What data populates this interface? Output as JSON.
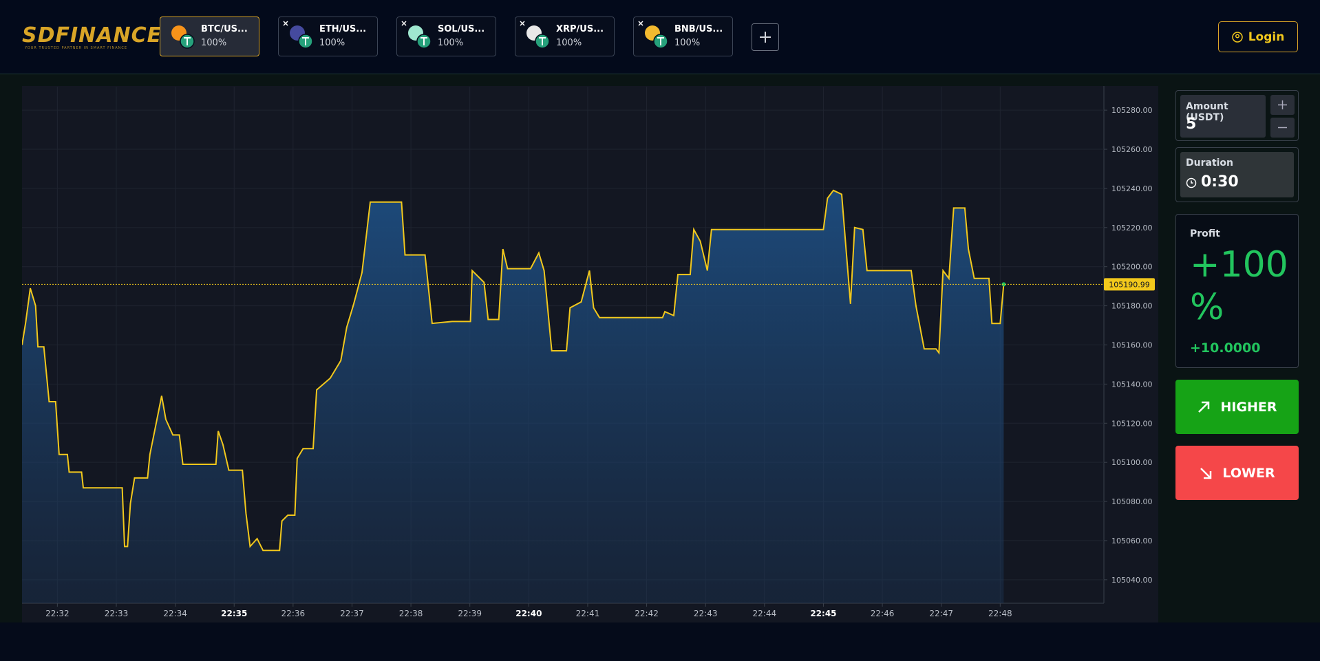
{
  "header": {
    "logo": "SDFINANCE",
    "tagline": "YOUR TRUSTED PARTNER IN SMART FINANCE",
    "active_tab": 0,
    "tabs": [
      {
        "pair": "BTC/US...",
        "payout": "100%",
        "color": "#f7931a"
      },
      {
        "pair": "ETH/US...",
        "payout": "100%",
        "color": "#454a9e"
      },
      {
        "pair": "SOL/US...",
        "payout": "100%",
        "color": "#9fe8d0"
      },
      {
        "pair": "XRP/US...",
        "payout": "100%",
        "color": "#e8e8e8"
      },
      {
        "pair": "BNB/US...",
        "payout": "100%",
        "color": "#f3ba2f"
      }
    ],
    "login": "Login"
  },
  "chart_data": {
    "type": "line",
    "grid": true,
    "x": [
      1351.4,
      1351.46,
      1351.54,
      1351.63,
      1351.67,
      1351.77,
      1351.86,
      1351.97,
      1352.03,
      1352.17,
      1352.2,
      1352.41,
      1352.44,
      1353.1,
      1353.14,
      1353.19,
      1353.24,
      1353.31,
      1353.53,
      1353.57,
      1353.67,
      1353.77,
      1353.84,
      1353.96,
      1354.07,
      1354.13,
      1354.69,
      1354.73,
      1354.81,
      1354.91,
      1355.14,
      1355.2,
      1355.27,
      1355.39,
      1355.49,
      1355.77,
      1355.81,
      1355.91,
      1356.03,
      1356.07,
      1356.17,
      1356.34,
      1356.4,
      1356.63,
      1356.81,
      1356.91,
      1357.03,
      1357.17,
      1357.31,
      1357.84,
      1357.9,
      1358.24,
      1358.36,
      1358.7,
      1359.01,
      1359.04,
      1359.24,
      1359.31,
      1359.49,
      1359.56,
      1359.64,
      1360.03,
      1360.17,
      1360.26,
      1360.39,
      1360.64,
      1360.7,
      1360.89,
      1361.03,
      1361.1,
      1361.2,
      1362.27,
      1362.31,
      1362.46,
      1362.53,
      1362.74,
      1362.8,
      1362.91,
      1363.03,
      1363.1,
      1365.0,
      1365.07,
      1365.17,
      1365.31,
      1365.39,
      1365.46,
      1365.53,
      1365.67,
      1365.74,
      1366.49,
      1366.57,
      1366.71,
      1366.91,
      1366.96,
      1367.03,
      1367.13,
      1367.21,
      1367.4,
      1367.46,
      1367.56,
      1367.81,
      1367.86,
      1368.0,
      1368.06
    ],
    "series": [
      {
        "color": "#f2c81c",
        "values": [
          105160,
          105171,
          105189,
          105180,
          105159,
          105159,
          105131,
          105131,
          105104,
          105104,
          105095,
          105095,
          105087,
          105087,
          105057,
          105057,
          105079,
          105092,
          105092,
          105104,
          105119,
          105134,
          105122,
          105114,
          105114,
          105099,
          105099,
          105116,
          105109,
          105096,
          105096,
          105074,
          105057,
          105061,
          105055,
          105055,
          105070,
          105073,
          105073,
          105102,
          105107,
          105107,
          105137,
          105143,
          105152,
          105169,
          105181,
          105197,
          105233,
          105233,
          105206,
          105206,
          105171,
          105172,
          105172,
          105198,
          105192,
          105173,
          105173,
          105209,
          105199,
          105199,
          105207,
          105198,
          105157,
          105157,
          105179,
          105182,
          105198,
          105179,
          105174,
          105174,
          105177,
          105175,
          105196,
          105196,
          105219,
          105213,
          105198,
          105219,
          105219,
          105235,
          105239,
          105237,
          105207,
          105181,
          105220,
          105219,
          105198,
          105198,
          105180,
          105158,
          105158,
          105156,
          105198,
          105194,
          105230,
          105230,
          105209,
          105194,
          105194,
          105171,
          105171,
          105190.99
        ]
      }
    ],
    "current_price": 105190.99,
    "xlim": [
      1351.4,
      1369.76
    ],
    "xticks": [
      {
        "value": 1352,
        "label": "22:32"
      },
      {
        "value": 1353,
        "label": "22:33"
      },
      {
        "value": 1354,
        "label": "22:34"
      },
      {
        "value": 1355,
        "label": "22:35"
      },
      {
        "value": 1356,
        "label": "22:36"
      },
      {
        "value": 1357,
        "label": "22:37"
      },
      {
        "value": 1358,
        "label": "22:38"
      },
      {
        "value": 1359,
        "label": "22:39"
      },
      {
        "value": 1360,
        "label": "22:40"
      },
      {
        "value": 1361,
        "label": "22:41"
      },
      {
        "value": 1362,
        "label": "22:42"
      },
      {
        "value": 1363,
        "label": "22:43"
      },
      {
        "value": 1364,
        "label": "22:44"
      },
      {
        "value": 1365,
        "label": "22:45"
      },
      {
        "value": 1366,
        "label": "22:46"
      },
      {
        "value": 1367,
        "label": "22:47"
      },
      {
        "value": 1368,
        "label": "22:48"
      }
    ],
    "ylim": [
      105028,
      105292
    ],
    "yticks": [
      {
        "value": 105040,
        "label": "105040.00"
      },
      {
        "value": 105060,
        "label": "105060.00"
      },
      {
        "value": 105080,
        "label": "105080.00"
      },
      {
        "value": 105100,
        "label": "105100.00"
      },
      {
        "value": 105120,
        "label": "105120.00"
      },
      {
        "value": 105140,
        "label": "105140.00"
      },
      {
        "value": 105160,
        "label": "105160.00"
      },
      {
        "value": 105180,
        "label": "105180.00"
      },
      {
        "value": 105200,
        "label": "105200.00"
      },
      {
        "value": 105220,
        "label": "105220.00"
      },
      {
        "value": 105240,
        "label": "105240.00"
      },
      {
        "value": 105260,
        "label": "105260.00"
      },
      {
        "value": 105280,
        "label": "105280.00"
      }
    ]
  },
  "trade_panel": {
    "amount_label": "Amount (USDT)",
    "amount": 5,
    "duration_label": "Duration",
    "duration": "0:30",
    "profit_label": "Profit",
    "profit_percent": "+100 %",
    "profit_amount": "+10.0000",
    "higher": "HIGHER",
    "lower": "LOWER"
  }
}
